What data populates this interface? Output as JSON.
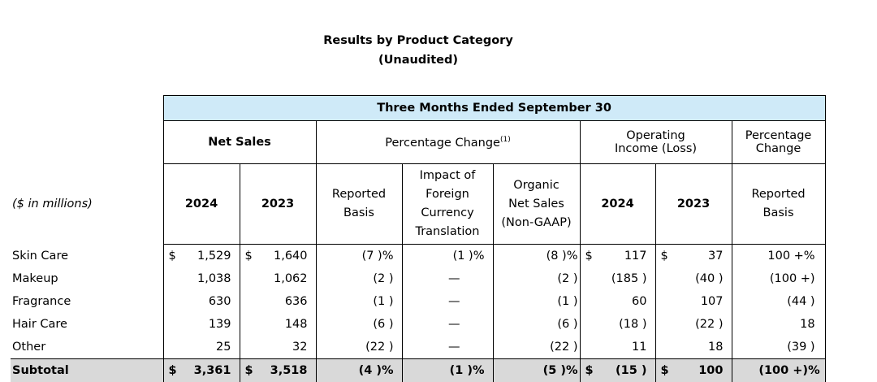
{
  "title": "Results by Product Category",
  "subtitle": "(Unaudited)",
  "period_header": "Three Months Ended September 30",
  "groups": {
    "net_sales": "Net Sales",
    "pct_change": "Percentage Change",
    "pct_change_note": "(1)",
    "op_income_line1": "Operating",
    "op_income_line2": "Income (Loss)",
    "pct_change2_line1": "Percentage",
    "pct_change2_line2": "Change"
  },
  "units": "($ in millions)",
  "cols": {
    "ns_2024": "2024",
    "ns_2023": "2023",
    "reported": [
      "Reported",
      "Basis"
    ],
    "fx": [
      "Impact of",
      "Foreign",
      "Currency",
      "Translation"
    ],
    "organic": [
      "Organic",
      "Net Sales",
      "(Non-GAAP)"
    ],
    "oi_2024": "2024",
    "oi_2023": "2023",
    "reported2": [
      "Reported",
      "Basis"
    ]
  },
  "currency": "$",
  "rows": [
    {
      "label": "Skin Care",
      "ns24": "1,529",
      "ns23": "1,640",
      "rep": "(7 )%",
      "fx": "(1 )%",
      "org": "(8 )%",
      "oi24": "117",
      "oi23": "37",
      "rep2": "100 +%",
      "dollar": true
    },
    {
      "label": "Makeup",
      "ns24": "1,038",
      "ns23": "1,062",
      "rep": "(2 )",
      "fx": "—",
      "org": "(2 )",
      "oi24": "(185 )",
      "oi23": "(40 )",
      "rep2": "(100 +)",
      "dollar": false
    },
    {
      "label": "Fragrance",
      "ns24": "630",
      "ns23": "636",
      "rep": "(1 )",
      "fx": "—",
      "org": "(1 )",
      "oi24": "60",
      "oi23": "107",
      "rep2": "(44 )",
      "dollar": false
    },
    {
      "label": "Hair Care",
      "ns24": "139",
      "ns23": "148",
      "rep": "(6 )",
      "fx": "—",
      "org": "(6 )",
      "oi24": "(18 )",
      "oi23": "(22 )",
      "rep2": "18",
      "dollar": false
    },
    {
      "label": "Other",
      "ns24": "25",
      "ns23": "32",
      "rep": "(22 )",
      "fx": "—",
      "org": "(22 )",
      "oi24": "11",
      "oi23": "18",
      "rep2": "(39 )",
      "dollar": false
    }
  ],
  "subtotal": {
    "label": "Subtotal",
    "ns24": "3,361",
    "ns23": "3,518",
    "rep": "(4 )%",
    "fx": "(1 )%",
    "org": "(5 )%",
    "oi24": "(15 )",
    "oi23": "100",
    "rep2": "(100 +)%"
  }
}
